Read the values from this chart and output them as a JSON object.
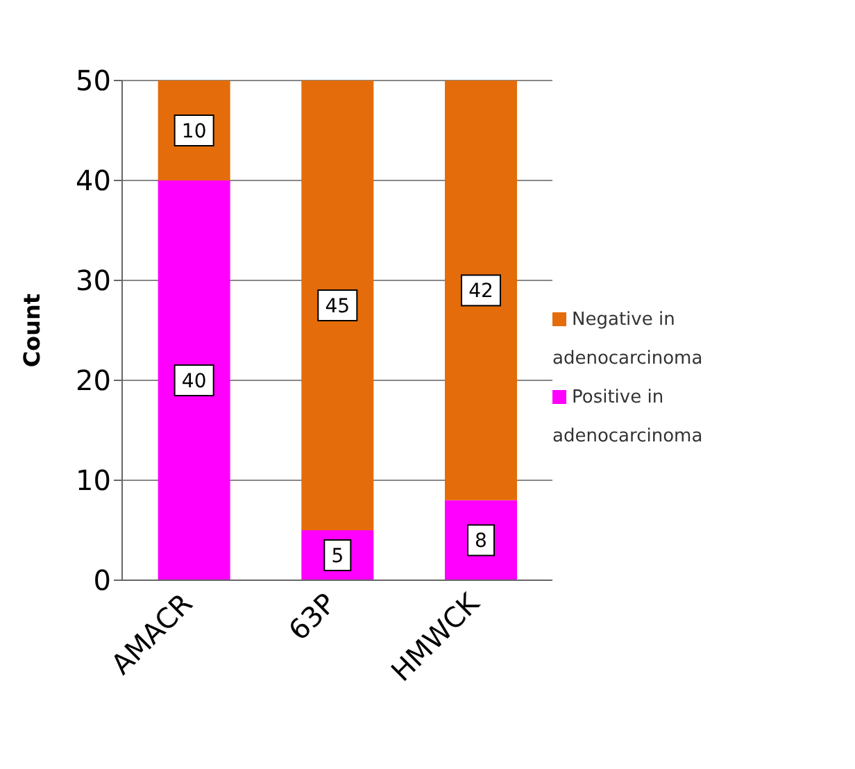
{
  "chart_data": {
    "type": "bar",
    "ylabel": "Count",
    "categories": [
      "AMACR",
      "63P",
      "HMWCK"
    ],
    "stacked": true,
    "series": [
      {
        "name": "Positive in adenocarcinoma",
        "color": "#ff00ff",
        "values": [
          40,
          5,
          8
        ]
      },
      {
        "name": "Negative in adenocarcinoma",
        "color": "#e46c0a",
        "values": [
          10,
          45,
          42
        ]
      }
    ],
    "ylim": [
      0,
      50
    ],
    "yticks": [
      0,
      10,
      20,
      30,
      40,
      50
    ],
    "grid": "y",
    "legend": "right",
    "data_labels": true
  }
}
